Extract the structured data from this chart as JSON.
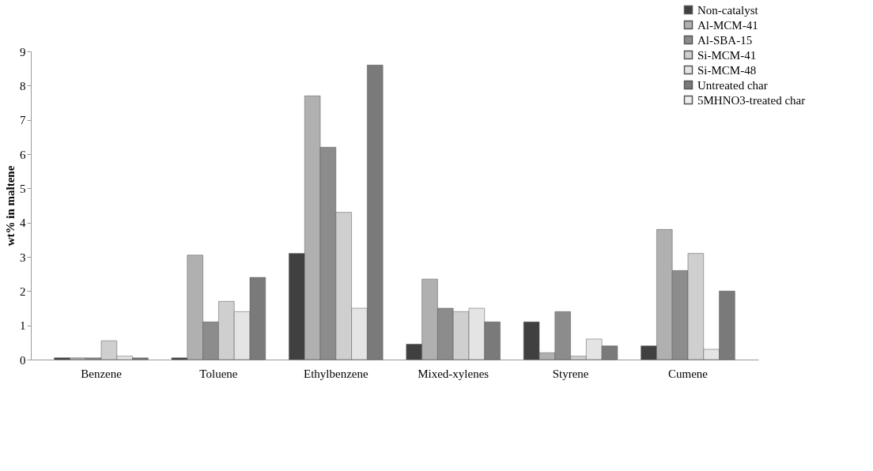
{
  "chart_data": {
    "type": "bar",
    "ylabel": "wt% in maltene",
    "categories": [
      "Benzene",
      "Toluene",
      "Ethylbenzene",
      "Mixed-xylenes",
      "Styrene",
      "Cumene"
    ],
    "series": [
      {
        "name": "Non-catalyst",
        "color": "#404040",
        "values": [
          0.05,
          0.05,
          3.1,
          0.45,
          1.1,
          0.4
        ]
      },
      {
        "name": "Al-MCM-41",
        "color": "#b0b0b0",
        "values": [
          0.05,
          3.05,
          7.7,
          2.35,
          0.2,
          3.8
        ]
      },
      {
        "name": "Al-SBA-15",
        "color": "#8c8c8c",
        "values": [
          0.05,
          1.1,
          6.2,
          1.5,
          1.4,
          2.6
        ]
      },
      {
        "name": "Si-MCM-41",
        "color": "#cfcfcf",
        "values": [
          0.55,
          1.7,
          4.3,
          1.4,
          0.1,
          3.1
        ]
      },
      {
        "name": "Si-MCM-48",
        "color": "#e4e4e4",
        "values": [
          0.1,
          1.4,
          1.5,
          1.5,
          0.6,
          0.3
        ]
      },
      {
        "name": "Untreated char",
        "color": "#7a7a7a",
        "values": [
          0.05,
          2.4,
          8.6,
          1.1,
          0.4,
          2.0
        ]
      },
      {
        "name": "5MHNO3-treated char",
        "color": "#eeeeee",
        "values": [
          null,
          null,
          null,
          null,
          null,
          null
        ]
      }
    ],
    "ylim": [
      0,
      9
    ],
    "yticks": [
      0,
      1,
      2,
      3,
      4,
      5,
      6,
      7,
      8,
      9
    ],
    "grid": false,
    "legend": "top right"
  }
}
